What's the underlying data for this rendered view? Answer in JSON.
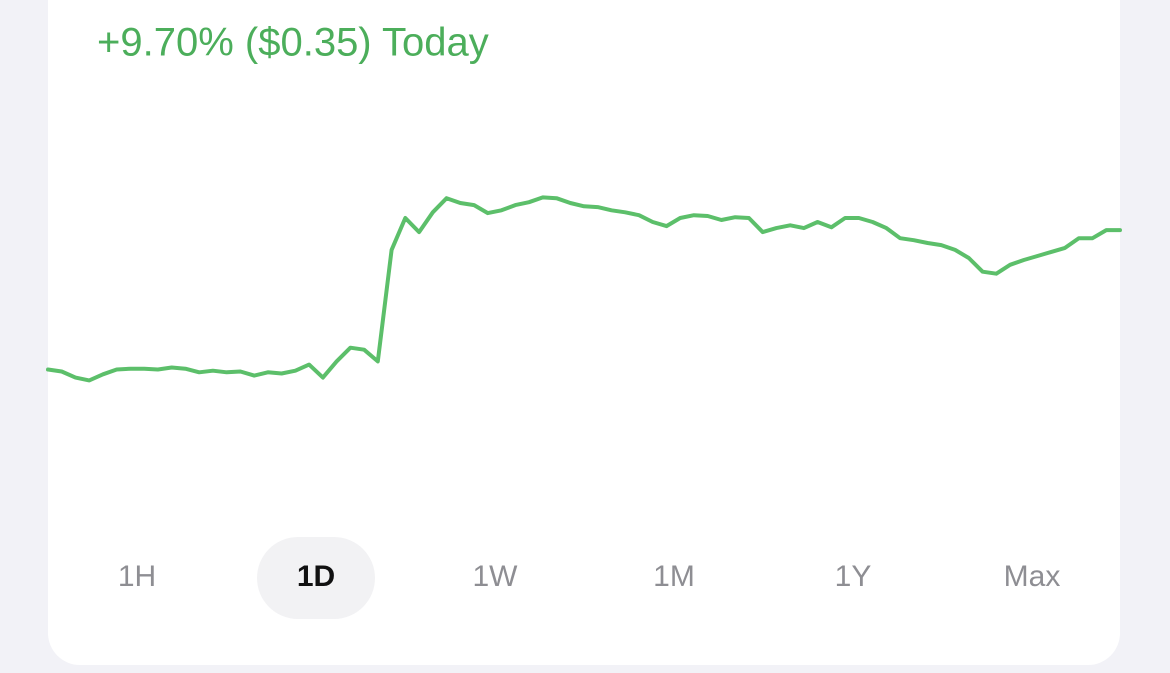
{
  "chart_data": {
    "type": "line",
    "title": "+9.70% ($0.35) Today",
    "color": "#5cbf6a",
    "ylim": [
      3.29,
      4.28
    ],
    "values": [
      3.613,
      3.608,
      3.593,
      3.586,
      3.601,
      3.613,
      3.615,
      3.615,
      3.613,
      3.618,
      3.615,
      3.606,
      3.61,
      3.606,
      3.608,
      3.598,
      3.606,
      3.603,
      3.61,
      3.625,
      3.593,
      3.633,
      3.667,
      3.662,
      3.633,
      3.909,
      3.988,
      3.953,
      4.002,
      4.037,
      4.025,
      4.02,
      4.0,
      4.007,
      4.02,
      4.027,
      4.039,
      4.037,
      4.025,
      4.017,
      4.015,
      4.007,
      4.002,
      3.995,
      3.978,
      3.968,
      3.988,
      3.995,
      3.993,
      3.983,
      3.99,
      3.988,
      3.953,
      3.963,
      3.97,
      3.963,
      3.978,
      3.965,
      3.988,
      3.988,
      3.978,
      3.963,
      3.938,
      3.933,
      3.926,
      3.921,
      3.909,
      3.889,
      3.855,
      3.85,
      3.872,
      3.884,
      3.894,
      3.904,
      3.914,
      3.938,
      3.938,
      3.958,
      3.958
    ],
    "ranges": [
      "1H",
      "1D",
      "1W",
      "1M",
      "1Y",
      "Max"
    ],
    "selected_range": 1
  }
}
